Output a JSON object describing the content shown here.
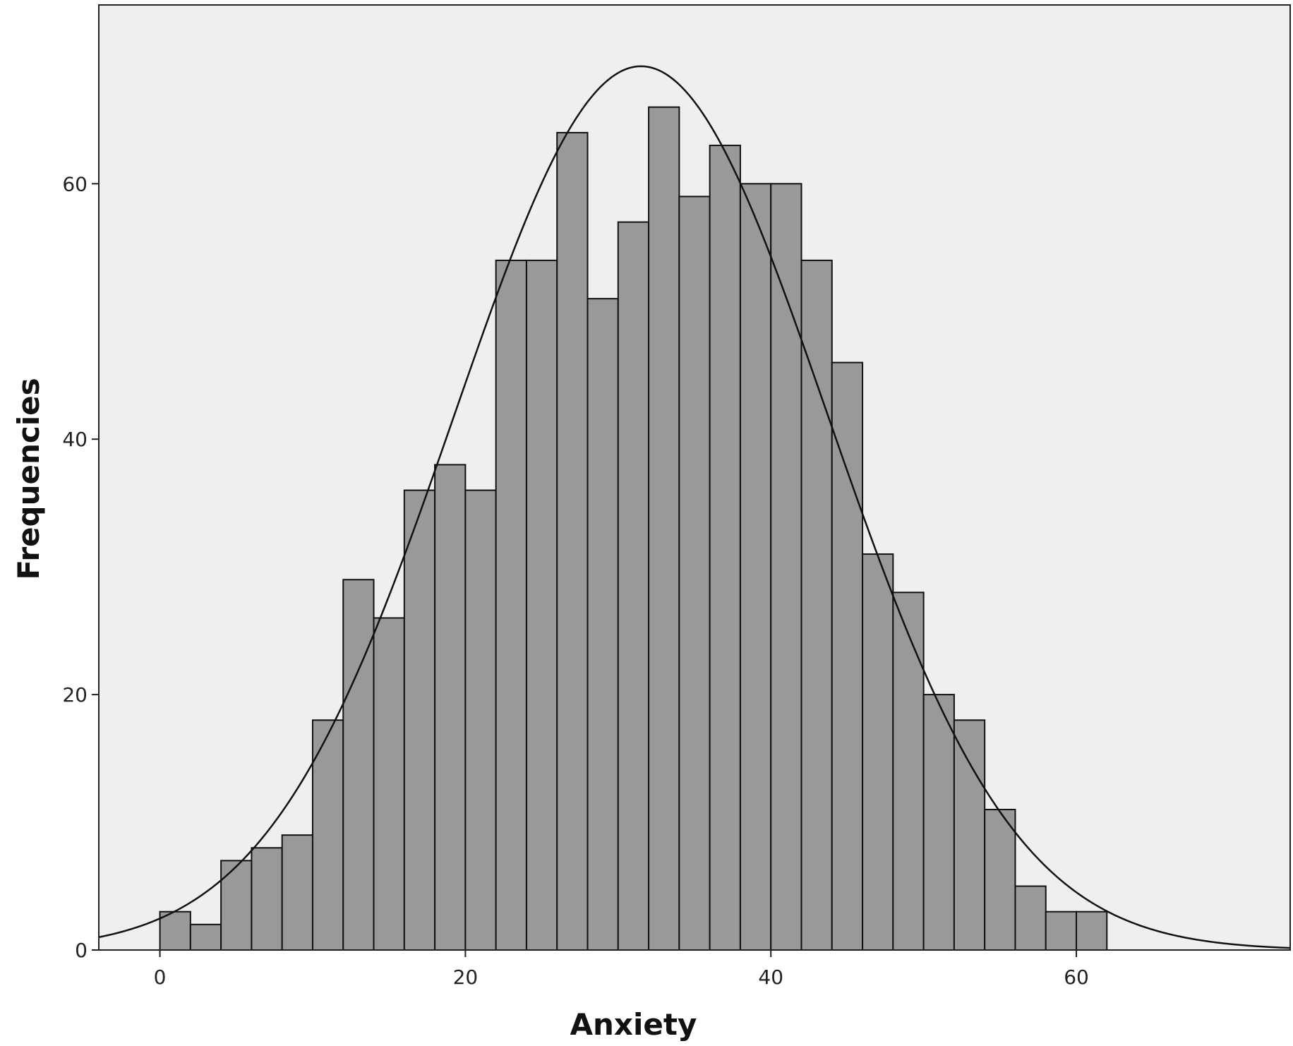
{
  "chart_data": {
    "type": "bar",
    "subtype": "histogram",
    "title": "",
    "xlabel": "Anxiety",
    "ylabel": "Frequencies",
    "xlim": [
      -4,
      74
    ],
    "ylim": [
      0,
      74
    ],
    "x_ticks": [
      0,
      20,
      40,
      60
    ],
    "y_ticks": [
      0,
      20,
      40,
      60
    ],
    "grid": false,
    "legend": "none",
    "bin_width": 2,
    "bin_starts": [
      0,
      2,
      4,
      6,
      8,
      10,
      12,
      14,
      16,
      18,
      20,
      22,
      24,
      26,
      28,
      30,
      32,
      34,
      36,
      38,
      40,
      42,
      44,
      46,
      48,
      50,
      52,
      54,
      56,
      58,
      60
    ],
    "values": [
      3,
      2,
      7,
      8,
      9,
      18,
      29,
      26,
      36,
      38,
      36,
      54,
      54,
      64,
      51,
      57,
      66,
      59,
      63,
      60,
      60,
      54,
      46,
      31,
      28,
      20,
      18,
      11,
      5,
      3,
      3
    ],
    "normal_curve": {
      "mean": 31.5,
      "sd": 12.2,
      "peak": 69.2
    },
    "colors": {
      "plot_background": "#efefef",
      "bar_fill": "#999999",
      "bar_stroke": "#111111",
      "curve": "#111111"
    }
  }
}
